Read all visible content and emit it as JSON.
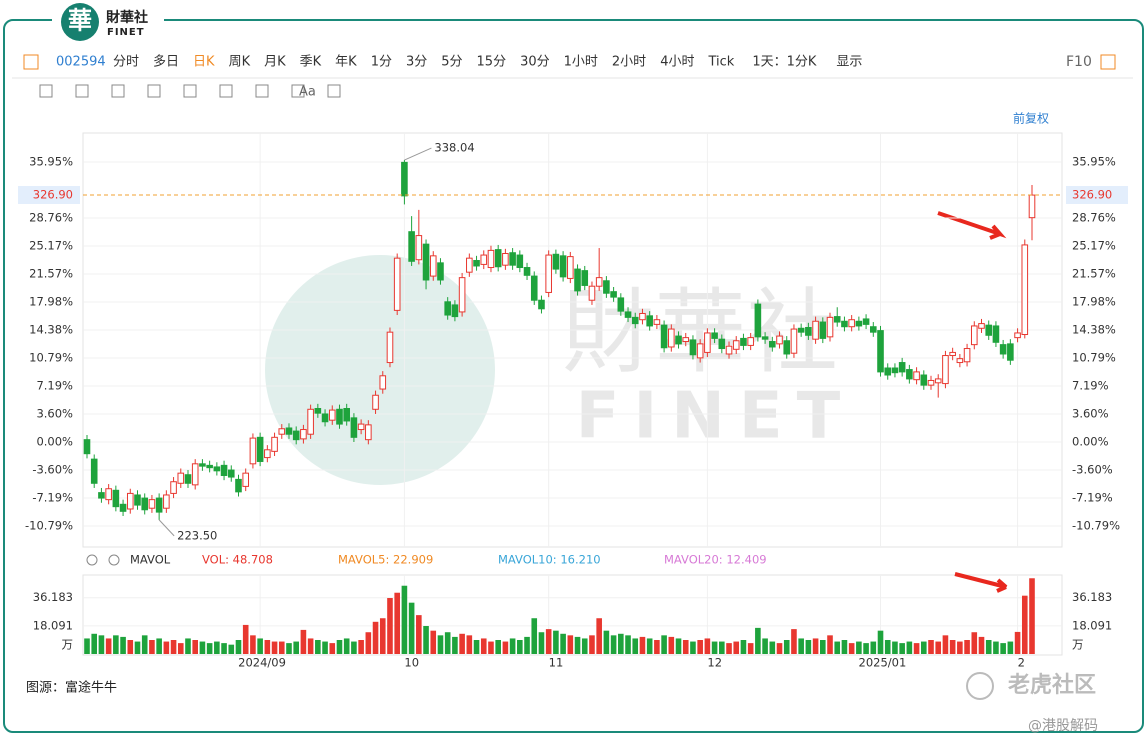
{
  "header": {
    "logo_mark": "華",
    "logo_cn": "財華社",
    "logo_en": "FINET",
    "watermark_cn": "財華社",
    "watermark_en": "FINET"
  },
  "toolbar": {
    "code": "002594",
    "periods": [
      "分时",
      "多日",
      "日K",
      "周K",
      "月K",
      "季K",
      "年K",
      "1分",
      "3分",
      "5分",
      "15分",
      "30分",
      "1小时",
      "2小时",
      "4小时",
      "Tick"
    ],
    "active": 2,
    "range": "1天：1分K",
    "display": "显示",
    "f10": "F10",
    "font_tool": "Aa",
    "adjust": "前复权"
  },
  "chart_data": [
    {
      "type": "candlestick",
      "open": [
        0.3,
        -2.2,
        -6.5,
        -7.4,
        -6.2,
        -8.0,
        -8.6,
        -6.8,
        -7.2,
        -8.5,
        -7.2,
        -8.5,
        -6.6,
        -5.3,
        -4.2,
        -5.5,
        -2.8,
        -3.0,
        -3.2,
        -3.0,
        -3.6,
        -4.8,
        -5.7,
        -2.8,
        0.6,
        -2.0,
        -1.2,
        1.0,
        1.8,
        1.4,
        0.4,
        1.0,
        4.3,
        3.6,
        2.8,
        4.2,
        4.3,
        3.1,
        1.6,
        0.3,
        4.2,
        6.8,
        10.2,
        16.9,
        35.9,
        27.0,
        23.4,
        25.4,
        21.3,
        23.0,
        18.0,
        17.6,
        16.7,
        21.8,
        23.3,
        22.8,
        22.4,
        24.7,
        22.7,
        24.3,
        24.0,
        22.4,
        21.3,
        18.2,
        19.2,
        24.1,
        23.9,
        21.0,
        22.2,
        22.0,
        18.2,
        20.0,
        20.7,
        19.3,
        18.5,
        16.7,
        16.0,
        15.7,
        16.2,
        15.1,
        15.0,
        12.2,
        13.6,
        12.9,
        13.1,
        10.8,
        11.5,
        14.0,
        13.2,
        11.3,
        11.9,
        13.3,
        12.4,
        17.7,
        13.5,
        12.9,
        12.6,
        13.0,
        11.4,
        14.6,
        14.7,
        13.2,
        15.4,
        13.5,
        16.1,
        15.5,
        14.8,
        15.5,
        15.8,
        14.8,
        14.3,
        9.5,
        9.5,
        10.2,
        9.3,
        8.0,
        8.6,
        7.3,
        7.6,
        7.5,
        11.1,
        10.2,
        10.3,
        12.5,
        14.6,
        15.0,
        14.9,
        12.5,
        12.6,
        13.4,
        13.8,
        28.8
      ],
      "high": [
        0.9,
        -1.6,
        -5.9,
        -5.4,
        -5.6,
        -7.4,
        -6.0,
        -6.2,
        -6.6,
        -6.8,
        -6.6,
        -6.2,
        -4.5,
        -3.4,
        -3.6,
        -2.2,
        -2.2,
        -2.4,
        -2.6,
        -2.4,
        -3.0,
        -4.2,
        -3.4,
        1.1,
        1.2,
        -0.4,
        1.2,
        2.3,
        2.4,
        2.0,
        2.2,
        4.8,
        4.9,
        4.2,
        4.7,
        4.8,
        4.9,
        3.7,
        2.9,
        2.8,
        6.6,
        9.1,
        14.7,
        24.2,
        36.2,
        29.0,
        29.8,
        26.0,
        24.5,
        23.6,
        18.6,
        18.2,
        21.7,
        24.2,
        23.9,
        24.6,
        25.2,
        25.3,
        24.8,
        24.9,
        24.6,
        23.0,
        21.9,
        18.8,
        24.6,
        24.7,
        24.5,
        24.4,
        22.8,
        22.6,
        20.6,
        24.9,
        21.3,
        19.9,
        19.1,
        17.3,
        16.6,
        17.1,
        16.8,
        16.3,
        15.6,
        15.1,
        14.2,
        14.0,
        13.7,
        13.2,
        14.6,
        14.6,
        13.8,
        12.9,
        13.6,
        13.9,
        14.0,
        18.3,
        14.1,
        13.5,
        14.2,
        13.6,
        15.1,
        15.2,
        15.3,
        16.1,
        16.0,
        16.6,
        17.3,
        16.1,
        16.3,
        16.1,
        16.4,
        15.4,
        14.9,
        10.1,
        10.1,
        10.8,
        9.9,
        9.6,
        9.2,
        8.5,
        8.7,
        11.7,
        12.1,
        11.3,
        12.6,
        15.5,
        15.8,
        15.6,
        15.5,
        13.1,
        13.2,
        14.6,
        26.0,
        33.0
      ],
      "low": [
        -2.1,
        -5.9,
        -7.8,
        -8.0,
        -8.9,
        -9.5,
        -9.2,
        -8.7,
        -9.3,
        -9.1,
        -10.0,
        -9.1,
        -7.2,
        -5.9,
        -5.9,
        -6.1,
        -3.7,
        -3.9,
        -4.3,
        -4.9,
        -5.1,
        -7.0,
        -6.3,
        -3.4,
        -3.1,
        -2.6,
        -1.8,
        0.4,
        0.4,
        -0.3,
        -0.2,
        0.4,
        3.1,
        2.0,
        2.2,
        1.7,
        2.1,
        0.0,
        1.0,
        -0.3,
        3.6,
        6.2,
        9.6,
        16.3,
        30.5,
        22.6,
        22.8,
        19.6,
        20.7,
        20.2,
        15.7,
        15.5,
        16.1,
        21.2,
        22.0,
        22.2,
        21.8,
        21.9,
        22.1,
        22.1,
        21.8,
        20.8,
        17.6,
        16.5,
        18.6,
        21.6,
        20.6,
        20.4,
        18.8,
        19.5,
        17.6,
        19.4,
        18.5,
        18.0,
        16.2,
        15.4,
        14.6,
        15.1,
        14.3,
        14.5,
        11.5,
        11.6,
        12.0,
        12.3,
        10.6,
        10.2,
        10.9,
        12.7,
        11.4,
        10.7,
        11.3,
        11.8,
        11.8,
        12.9,
        12.6,
        11.6,
        12.0,
        10.7,
        10.8,
        13.5,
        13.1,
        12.6,
        12.7,
        12.9,
        14.8,
        14.2,
        14.2,
        14.3,
        14.5,
        13.5,
        8.4,
        8.0,
        8.3,
        8.4,
        7.5,
        7.4,
        6.7,
        6.7,
        5.7,
        6.9,
        10.5,
        9.6,
        9.7,
        11.9,
        14.0,
        13.1,
        12.2,
        10.7,
        9.9,
        12.8,
        13.3,
        25.9
      ],
      "close": [
        -1.5,
        -5.3,
        -7.2,
        -6.0,
        -8.3,
        -8.9,
        -6.6,
        -8.1,
        -8.7,
        -7.4,
        -9.0,
        -6.8,
        -5.1,
        -4.0,
        -5.3,
        -2.8,
        -3.1,
        -3.3,
        -3.7,
        -4.3,
        -4.5,
        -6.4,
        -4.0,
        0.5,
        -2.5,
        -1.0,
        0.6,
        1.7,
        1.0,
        0.3,
        1.6,
        4.2,
        3.7,
        2.6,
        4.1,
        2.3,
        2.7,
        0.6,
        2.3,
        2.2,
        6.0,
        8.5,
        14.1,
        23.6,
        31.6,
        23.2,
        26.5,
        20.8,
        23.9,
        20.8,
        16.3,
        16.1,
        21.1,
        23.6,
        22.6,
        24.0,
        24.6,
        22.5,
        24.2,
        22.7,
        22.4,
        21.4,
        18.2,
        17.1,
        24.0,
        22.2,
        21.2,
        23.8,
        19.4,
        20.1,
        20.0,
        21.1,
        19.1,
        18.6,
        16.8,
        16.0,
        15.2,
        16.5,
        14.9,
        15.7,
        12.1,
        14.5,
        12.6,
        13.4,
        11.2,
        12.6,
        14.0,
        13.3,
        12.0,
        12.3,
        13.0,
        12.4,
        13.4,
        13.5,
        13.2,
        12.2,
        13.6,
        11.3,
        14.5,
        14.1,
        13.7,
        15.5,
        13.3,
        16.0,
        15.4,
        14.8,
        15.7,
        14.9,
        15.1,
        14.1,
        9.0,
        8.6,
        8.9,
        9.0,
        8.1,
        9.0,
        7.3,
        7.9,
        8.1,
        11.1,
        11.5,
        10.7,
        12.0,
        14.9,
        15.2,
        13.7,
        12.8,
        11.3,
        10.5,
        14.0,
        25.3,
        31.7
      ],
      "up_color": "#e8372f",
      "down_color": "#1ea33c",
      "ylim": [
        -13.48,
        39.67
      ],
      "yticks": [
        {
          "value": 35.95,
          "label": "35.95%"
        },
        {
          "value": 28.76,
          "label": "28.76%"
        },
        {
          "value": 25.17,
          "label": "25.17%"
        },
        {
          "value": 21.57,
          "label": "21.57%"
        },
        {
          "value": 17.98,
          "label": "17.98%"
        },
        {
          "value": 14.38,
          "label": "14.38%"
        },
        {
          "value": 10.79,
          "label": "10.79%"
        },
        {
          "value": 7.19,
          "label": "7.19%"
        },
        {
          "value": 3.6,
          "label": "3.60%"
        },
        {
          "value": 0,
          "label": "0.00%"
        },
        {
          "value": -3.6,
          "label": "-3.60%"
        },
        {
          "value": -7.19,
          "label": "-7.19%"
        },
        {
          "value": -10.79,
          "label": "-10.79%"
        }
      ],
      "grid": true,
      "xticks": [
        {
          "value": 24,
          "label": "2024/09"
        },
        {
          "value": 44,
          "label": "10"
        },
        {
          "value": 64,
          "label": "11"
        },
        {
          "value": 86,
          "label": "12"
        },
        {
          "value": 110,
          "label": "2025/01"
        },
        {
          "value": 129,
          "label": "2"
        }
      ],
      "current": {
        "value": 31.71,
        "label": "326.90"
      },
      "annotations": [
        {
          "index": 44,
          "label": "338.04"
        },
        {
          "index": 10,
          "label": "223.50"
        }
      ]
    },
    {
      "type": "bar",
      "values": [
        10,
        13,
        12,
        10,
        12,
        11,
        9,
        8,
        12,
        9,
        10,
        8,
        9,
        7,
        10,
        9,
        8,
        7,
        8,
        7,
        6,
        9,
        18.7,
        12,
        10,
        9,
        8,
        8,
        7,
        8,
        15.5,
        10,
        9,
        8,
        7,
        9,
        10,
        8,
        9,
        14,
        20.7,
        23,
        36,
        39.4,
        43.9,
        33,
        25,
        18,
        15,
        12,
        14,
        11,
        13,
        12,
        9,
        10,
        8,
        9,
        8,
        10,
        9,
        11,
        23,
        14,
        16,
        15,
        13,
        12,
        11,
        10,
        12,
        23,
        15,
        12,
        13,
        12,
        10,
        11,
        10,
        9,
        12,
        11,
        10,
        9,
        8,
        9,
        10,
        8,
        8,
        7,
        8,
        9,
        7,
        16.8,
        10,
        8,
        7,
        9,
        16,
        10,
        9,
        10,
        9,
        12,
        8,
        9,
        7,
        8,
        7,
        8,
        15,
        9,
        8,
        7,
        8,
        7,
        8,
        9,
        8,
        12,
        9,
        8,
        9,
        14,
        11,
        9,
        8,
        7,
        8,
        14.2,
        37.5,
        48.7
      ],
      "ylim": [
        0,
        50.8
      ],
      "yticks": [
        18.091,
        36.183
      ],
      "unit": "万",
      "legend": [
        "MAVOL",
        "VOL: 48.708",
        "MAVOL5: 22.909",
        "MAVOL10: 16.210",
        "MAVOL20: 12.409"
      ],
      "legend_colors": [
        "#333333",
        "#e8372f",
        "#f08a24",
        "#3aa6d8",
        "#d77ad6"
      ]
    }
  ],
  "footer": {
    "source": "图源：富途牛牛",
    "brand": "老虎社区",
    "handle": "@港股解码"
  }
}
